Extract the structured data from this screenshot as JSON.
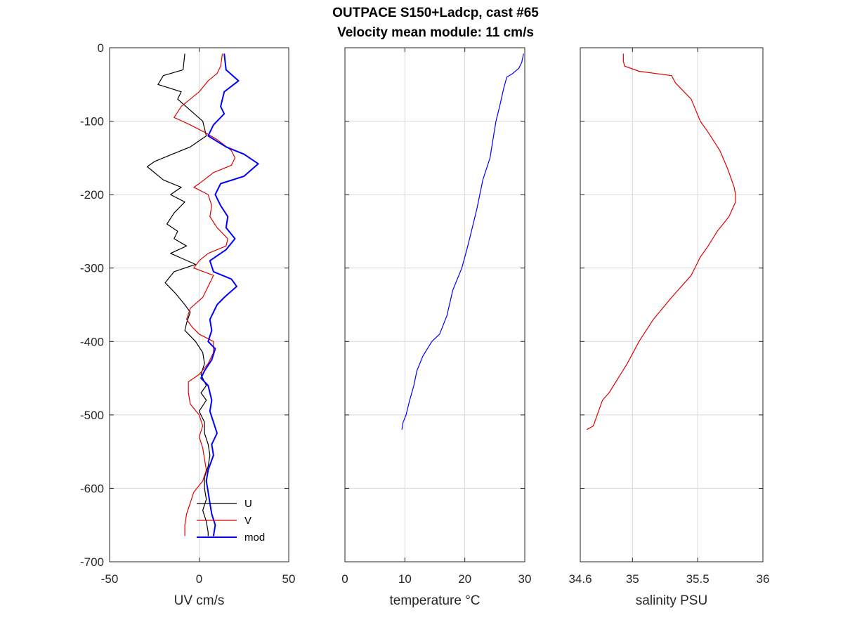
{
  "title": {
    "line1": "OUTPACE S150+Ladcp, cast #65",
    "line2": "Velocity mean module:  11 cm/s"
  },
  "chart_data": [
    {
      "type": "line",
      "xlabel": "UV cm/s",
      "ylabel": "",
      "xlim": [
        -50,
        50
      ],
      "ylim": [
        -700,
        0
      ],
      "xticks": [
        -50,
        0,
        50
      ],
      "yticks": [
        0,
        -100,
        -200,
        -300,
        -400,
        -500,
        -600,
        -700
      ],
      "grid": true,
      "legend": "bottom-right",
      "series": [
        {
          "name": "U",
          "color": "#000000",
          "points": [
            [
              -8,
              -8
            ],
            [
              -9,
              -30
            ],
            [
              -20,
              -38
            ],
            [
              -23,
              -50
            ],
            [
              -10,
              -60
            ],
            [
              -12,
              -70
            ],
            [
              -5,
              -85
            ],
            [
              2,
              -100
            ],
            [
              4,
              -120
            ],
            [
              -5,
              -135
            ],
            [
              -15,
              -145
            ],
            [
              -25,
              -155
            ],
            [
              -29,
              -162
            ],
            [
              -20,
              -180
            ],
            [
              -10,
              -190
            ],
            [
              -16,
              -200
            ],
            [
              -8,
              -210
            ],
            [
              -14,
              -225
            ],
            [
              -18,
              -240
            ],
            [
              -12,
              -250
            ],
            [
              -14,
              -260
            ],
            [
              -7,
              -270
            ],
            [
              -16,
              -280
            ],
            [
              -2,
              -295
            ],
            [
              -14,
              -305
            ],
            [
              -19,
              -320
            ],
            [
              -13,
              -335
            ],
            [
              -8,
              -350
            ],
            [
              -5,
              -360
            ],
            [
              -7,
              -375
            ],
            [
              -8,
              -385
            ],
            [
              -2,
              -400
            ],
            [
              2,
              -415
            ],
            [
              3,
              -430
            ],
            [
              1,
              -445
            ],
            [
              4,
              -460
            ],
            [
              1,
              -470
            ],
            [
              4,
              -480
            ],
            [
              0,
              -495
            ],
            [
              3,
              -510
            ],
            [
              3,
              -525
            ],
            [
              5,
              -540
            ],
            [
              6,
              -555
            ],
            [
              5,
              -570
            ],
            [
              3,
              -585
            ],
            [
              3,
              -600
            ],
            [
              4,
              -615
            ],
            [
              2,
              -630
            ],
            [
              4,
              -645
            ],
            [
              5,
              -660
            ],
            [
              5,
              -665
            ]
          ]
        },
        {
          "name": "V",
          "color": "#e00000",
          "points": [
            [
              13,
              -8
            ],
            [
              12,
              -25
            ],
            [
              10,
              -35
            ],
            [
              5,
              -45
            ],
            [
              0,
              -60
            ],
            [
              -10,
              -80
            ],
            [
              -14,
              -95
            ],
            [
              -5,
              -105
            ],
            [
              3,
              -115
            ],
            [
              10,
              -125
            ],
            [
              18,
              -140
            ],
            [
              20,
              -150
            ],
            [
              18,
              -160
            ],
            [
              8,
              -170
            ],
            [
              0,
              -185
            ],
            [
              -3,
              -190
            ],
            [
              5,
              -200
            ],
            [
              7,
              -215
            ],
            [
              6,
              -230
            ],
            [
              10,
              -245
            ],
            [
              16,
              -260
            ],
            [
              15,
              -270
            ],
            [
              5,
              -280
            ],
            [
              0,
              -290
            ],
            [
              -3,
              -300
            ],
            [
              8,
              -310
            ],
            [
              5,
              -325
            ],
            [
              2,
              -340
            ],
            [
              -5,
              -355
            ],
            [
              -7,
              -370
            ],
            [
              -4,
              -380
            ],
            [
              0,
              -390
            ],
            [
              8,
              -400
            ],
            [
              8,
              -415
            ],
            [
              5,
              -430
            ],
            [
              0,
              -445
            ],
            [
              -6,
              -455
            ],
            [
              -6,
              -470
            ],
            [
              -5,
              -485
            ],
            [
              0,
              -500
            ],
            [
              2,
              -515
            ],
            [
              0,
              -530
            ],
            [
              2,
              -545
            ],
            [
              3,
              -560
            ],
            [
              4,
              -575
            ],
            [
              2,
              -590
            ],
            [
              -3,
              -605
            ],
            [
              -5,
              -620
            ],
            [
              -7,
              -635
            ],
            [
              -8,
              -650
            ],
            [
              -8,
              -665
            ]
          ]
        },
        {
          "name": "mod",
          "color": "#0000ff",
          "points": [
            [
              14,
              -8
            ],
            [
              15,
              -30
            ],
            [
              22,
              -45
            ],
            [
              14,
              -60
            ],
            [
              12,
              -80
            ],
            [
              14,
              -90
            ],
            [
              8,
              -105
            ],
            [
              5,
              -120
            ],
            [
              15,
              -135
            ],
            [
              25,
              -145
            ],
            [
              33,
              -158
            ],
            [
              25,
              -175
            ],
            [
              12,
              -185
            ],
            [
              9,
              -200
            ],
            [
              12,
              -215
            ],
            [
              16,
              -230
            ],
            [
              15,
              -245
            ],
            [
              20,
              -260
            ],
            [
              15,
              -275
            ],
            [
              6,
              -290
            ],
            [
              8,
              -305
            ],
            [
              18,
              -315
            ],
            [
              21,
              -325
            ],
            [
              14,
              -340
            ],
            [
              10,
              -350
            ],
            [
              6,
              -370
            ],
            [
              7,
              -385
            ],
            [
              5,
              -400
            ],
            [
              9,
              -410
            ],
            [
              7,
              -425
            ],
            [
              3,
              -440
            ],
            [
              1,
              -450
            ],
            [
              5,
              -460
            ],
            [
              7,
              -480
            ],
            [
              6,
              -495
            ],
            [
              8,
              -510
            ],
            [
              10,
              -525
            ],
            [
              7,
              -540
            ],
            [
              8,
              -555
            ],
            [
              5,
              -575
            ],
            [
              4,
              -590
            ],
            [
              5,
              -605
            ],
            [
              6,
              -620
            ],
            [
              7,
              -635
            ],
            [
              9,
              -650
            ],
            [
              8,
              -665
            ]
          ]
        }
      ]
    },
    {
      "type": "line",
      "xlabel": "temperature °C",
      "ylabel": "",
      "xlim": [
        0,
        30
      ],
      "ylim": [
        -700,
        0
      ],
      "xticks": [
        0,
        10,
        20,
        30
      ],
      "grid": true,
      "series": [
        {
          "color": "#0000ff",
          "points": [
            [
              29.8,
              -8
            ],
            [
              29.5,
              -20
            ],
            [
              29,
              -28
            ],
            [
              28,
              -35
            ],
            [
              27,
              -40
            ],
            [
              26.5,
              -55
            ],
            [
              25.8,
              -80
            ],
            [
              25.2,
              -100
            ],
            [
              24.8,
              -120
            ],
            [
              24.2,
              -150
            ],
            [
              23,
              -180
            ],
            [
              22,
              -220
            ],
            [
              20.5,
              -270
            ],
            [
              19.5,
              -300
            ],
            [
              18,
              -330
            ],
            [
              17,
              -365
            ],
            [
              15.8,
              -390
            ],
            [
              14.5,
              -400
            ],
            [
              13,
              -420
            ],
            [
              12,
              -440
            ],
            [
              11.5,
              -460
            ],
            [
              10.8,
              -480
            ],
            [
              10.2,
              -500
            ],
            [
              9.7,
              -510
            ],
            [
              9.5,
              -520
            ]
          ]
        }
      ]
    },
    {
      "type": "line",
      "xlabel": "salinity PSU",
      "ylabel": "",
      "xlim": [
        34.6,
        36
      ],
      "ylim": [
        -700,
        0
      ],
      "xticks": [
        34.6,
        35,
        35.5,
        36
      ],
      "xticklabels": [
        "34.6",
        "35",
        "35.5",
        "36"
      ],
      "grid": true,
      "series": [
        {
          "color": "#e00000",
          "points": [
            [
              34.93,
              -8
            ],
            [
              34.93,
              -18
            ],
            [
              34.94,
              -25
            ],
            [
              35.05,
              -32
            ],
            [
              35.3,
              -38
            ],
            [
              35.33,
              -48
            ],
            [
              35.45,
              -70
            ],
            [
              35.52,
              -100
            ],
            [
              35.58,
              -115
            ],
            [
              35.67,
              -140
            ],
            [
              35.73,
              -165
            ],
            [
              35.78,
              -190
            ],
            [
              35.79,
              -200
            ],
            [
              35.79,
              -210
            ],
            [
              35.74,
              -230
            ],
            [
              35.65,
              -250
            ],
            [
              35.58,
              -270
            ],
            [
              35.52,
              -285
            ],
            [
              35.45,
              -310
            ],
            [
              35.3,
              -340
            ],
            [
              35.16,
              -370
            ],
            [
              35.05,
              -400
            ],
            [
              34.96,
              -430
            ],
            [
              34.89,
              -450
            ],
            [
              34.82,
              -470
            ],
            [
              34.77,
              -480
            ],
            [
              34.73,
              -500
            ],
            [
              34.7,
              -515
            ],
            [
              34.65,
              -520
            ]
          ]
        }
      ]
    }
  ]
}
